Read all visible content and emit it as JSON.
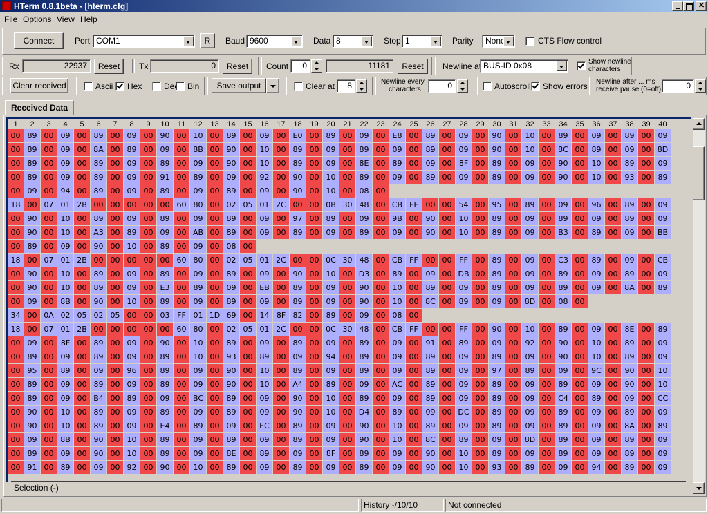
{
  "window": {
    "title": "HTerm 0.8.1beta - [hterm.cfg]"
  },
  "menu": [
    "File",
    "Options",
    "View",
    "Help"
  ],
  "toolbar1": {
    "connect": "Connect",
    "port_label": "Port",
    "port": "COM1",
    "r_button": "R",
    "baud_label": "Baud",
    "baud": "9600",
    "data_label": "Data",
    "data": "8",
    "stop_label": "Stop",
    "stop": "1",
    "parity_label": "Parity",
    "parity": "None",
    "cts": {
      "label": "CTS Flow control",
      "checked": false
    }
  },
  "toolbar2": {
    "rx_label": "Rx",
    "rx_value": 22937,
    "rx_reset": "Reset",
    "tx_label": "Tx",
    "tx_value": 0,
    "tx_reset": "Reset",
    "count_label": "Count",
    "count_value": 0,
    "count_total": 11181,
    "count_reset": "Reset",
    "newline_label": "Newline at",
    "newline_value": "BUS-ID 0x08",
    "show_newline": {
      "label": [
        "Show newline",
        "characters"
      ],
      "checked": true
    }
  },
  "toolbar3": {
    "clear_received": "Clear received",
    "ascii": {
      "label": "Ascii",
      "checked": false
    },
    "hex": {
      "label": "Hex",
      "checked": true
    },
    "dec": {
      "label": "Dec",
      "checked": false
    },
    "bin": {
      "label": "Bin",
      "checked": false
    },
    "save_output": "Save output",
    "clear_at": {
      "label": "Clear at",
      "checked": false
    },
    "clear_at_value": 8,
    "newline_every": [
      "Newline every",
      "... characters"
    ],
    "newline_every_value": 0,
    "autoscroll": {
      "label": "Autoscroll",
      "checked": false
    },
    "show_errors": {
      "label": "Show errors",
      "checked": true
    },
    "newline_after": [
      "Newline after ... ms",
      "receive pause (0=off)"
    ],
    "newline_after_value": 0
  },
  "tab": "Received Data",
  "grid": {
    "columns": [
      1,
      2,
      3,
      4,
      5,
      6,
      7,
      8,
      9,
      10,
      11,
      12,
      13,
      14,
      15,
      16,
      17,
      18,
      19,
      20,
      21,
      22,
      23,
      24,
      25,
      26,
      27,
      28,
      29,
      30,
      31,
      32,
      33,
      34,
      35,
      36,
      37,
      38,
      39,
      40
    ],
    "rows": [
      [
        "00",
        "89",
        "00",
        "09",
        "00",
        "89",
        "00",
        "09",
        "00",
        "90",
        "00",
        "10",
        "00",
        "89",
        "00",
        "09",
        "00",
        "E0",
        "00",
        "89",
        "00",
        "09",
        "00",
        "E8",
        "00",
        "89",
        "00",
        "09",
        "00",
        "90",
        "00",
        "10",
        "00",
        "89",
        "00",
        "09",
        "00",
        "89",
        "00",
        "09"
      ],
      [
        "00",
        "89",
        "00",
        "09",
        "00",
        "8A",
        "00",
        "89",
        "00",
        "09",
        "00",
        "8B",
        "00",
        "90",
        "00",
        "10",
        "00",
        "89",
        "00",
        "09",
        "00",
        "89",
        "00",
        "09",
        "00",
        "89",
        "00",
        "09",
        "00",
        "90",
        "00",
        "10",
        "00",
        "8C",
        "00",
        "89",
        "00",
        "09",
        "00",
        "8D"
      ],
      [
        "00",
        "89",
        "00",
        "09",
        "00",
        "89",
        "00",
        "09",
        "00",
        "89",
        "00",
        "09",
        "00",
        "90",
        "00",
        "10",
        "00",
        "89",
        "00",
        "09",
        "00",
        "8E",
        "00",
        "89",
        "00",
        "09",
        "00",
        "8F",
        "00",
        "89",
        "00",
        "09",
        "00",
        "90",
        "00",
        "10",
        "00",
        "89",
        "00",
        "09"
      ],
      [
        "00",
        "89",
        "00",
        "09",
        "00",
        "89",
        "00",
        "09",
        "00",
        "91",
        "00",
        "89",
        "00",
        "09",
        "00",
        "92",
        "00",
        "90",
        "00",
        "10",
        "00",
        "89",
        "00",
        "09",
        "00",
        "89",
        "00",
        "09",
        "00",
        "89",
        "00",
        "09",
        "00",
        "90",
        "00",
        "10",
        "00",
        "93",
        "00",
        "89"
      ],
      [
        "00",
        "09",
        "00",
        "94",
        "00",
        "89",
        "00",
        "09",
        "00",
        "89",
        "00",
        "09",
        "00",
        "89",
        "00",
        "09",
        "00",
        "90",
        "00",
        "10",
        "00",
        "08",
        "00"
      ],
      [
        "18",
        "00",
        "07",
        "01",
        "2B",
        "00",
        "00",
        "00",
        "00",
        "00",
        "60",
        "80",
        "00",
        "02",
        "05",
        "01",
        "2C",
        "00",
        "00",
        "0B",
        "30",
        "48",
        "00",
        "CB",
        "FF",
        "00",
        "00",
        "54",
        "00",
        "95",
        "00",
        "89",
        "00",
        "09",
        "00",
        "96",
        "00",
        "89",
        "00",
        "09"
      ],
      [
        "00",
        "90",
        "00",
        "10",
        "00",
        "89",
        "00",
        "09",
        "00",
        "89",
        "00",
        "09",
        "00",
        "89",
        "00",
        "09",
        "00",
        "97",
        "00",
        "89",
        "00",
        "09",
        "00",
        "9B",
        "00",
        "90",
        "00",
        "10",
        "00",
        "89",
        "00",
        "09",
        "00",
        "89",
        "00",
        "09",
        "00",
        "89",
        "00",
        "09"
      ],
      [
        "00",
        "90",
        "00",
        "10",
        "00",
        "A3",
        "00",
        "89",
        "00",
        "09",
        "00",
        "AB",
        "00",
        "89",
        "00",
        "09",
        "00",
        "89",
        "00",
        "09",
        "00",
        "89",
        "00",
        "09",
        "00",
        "90",
        "00",
        "10",
        "00",
        "89",
        "00",
        "09",
        "00",
        "B3",
        "00",
        "89",
        "00",
        "09",
        "00",
        "BB"
      ],
      [
        "00",
        "89",
        "00",
        "09",
        "00",
        "90",
        "00",
        "10",
        "00",
        "89",
        "00",
        "09",
        "00",
        "08",
        "00"
      ],
      [
        "18",
        "00",
        "07",
        "01",
        "2B",
        "00",
        "00",
        "00",
        "00",
        "00",
        "60",
        "80",
        "00",
        "02",
        "05",
        "01",
        "2C",
        "00",
        "00",
        "0C",
        "30",
        "48",
        "00",
        "CB",
        "FF",
        "00",
        "00",
        "FF",
        "00",
        "89",
        "00",
        "09",
        "00",
        "C3",
        "00",
        "89",
        "00",
        "09",
        "00",
        "CB"
      ],
      [
        "00",
        "90",
        "00",
        "10",
        "00",
        "89",
        "00",
        "09",
        "00",
        "89",
        "00",
        "09",
        "00",
        "89",
        "00",
        "09",
        "00",
        "90",
        "00",
        "10",
        "00",
        "D3",
        "00",
        "89",
        "00",
        "09",
        "00",
        "DB",
        "00",
        "89",
        "00",
        "09",
        "00",
        "89",
        "00",
        "09",
        "00",
        "89",
        "00",
        "09"
      ],
      [
        "00",
        "90",
        "00",
        "10",
        "00",
        "89",
        "00",
        "09",
        "00",
        "E3",
        "00",
        "89",
        "00",
        "09",
        "00",
        "EB",
        "00",
        "89",
        "00",
        "09",
        "00",
        "90",
        "00",
        "10",
        "00",
        "89",
        "00",
        "09",
        "00",
        "89",
        "00",
        "09",
        "00",
        "89",
        "00",
        "09",
        "00",
        "8A",
        "00",
        "89"
      ],
      [
        "00",
        "09",
        "00",
        "8B",
        "00",
        "90",
        "00",
        "10",
        "00",
        "89",
        "00",
        "09",
        "00",
        "89",
        "00",
        "09",
        "00",
        "89",
        "00",
        "09",
        "00",
        "90",
        "00",
        "10",
        "00",
        "8C",
        "00",
        "89",
        "00",
        "09",
        "00",
        "8D",
        "00",
        "08",
        "00"
      ],
      [
        "34",
        "00",
        "0A",
        "02",
        "05",
        "02",
        "05",
        "00",
        "00",
        "03",
        "FF",
        "01",
        "1D",
        "69",
        "00",
        "14",
        "8F",
        "82",
        "00",
        "89",
        "00",
        "09",
        "00",
        "08",
        "00"
      ],
      [
        "18",
        "00",
        "07",
        "01",
        "2B",
        "00",
        "00",
        "00",
        "00",
        "00",
        "60",
        "80",
        "00",
        "02",
        "05",
        "01",
        "2C",
        "00",
        "00",
        "0C",
        "30",
        "48",
        "00",
        "CB",
        "FF",
        "00",
        "00",
        "FF",
        "00",
        "90",
        "00",
        "10",
        "00",
        "89",
        "00",
        "09",
        "00",
        "8E",
        "00",
        "89"
      ],
      [
        "00",
        "09",
        "00",
        "8F",
        "00",
        "89",
        "00",
        "09",
        "00",
        "90",
        "00",
        "10",
        "00",
        "89",
        "00",
        "09",
        "00",
        "89",
        "00",
        "09",
        "00",
        "89",
        "00",
        "09",
        "00",
        "91",
        "00",
        "89",
        "00",
        "09",
        "00",
        "92",
        "00",
        "90",
        "00",
        "10",
        "00",
        "89",
        "00",
        "09"
      ],
      [
        "00",
        "89",
        "00",
        "09",
        "00",
        "89",
        "00",
        "09",
        "00",
        "89",
        "00",
        "10",
        "00",
        "93",
        "00",
        "89",
        "00",
        "09",
        "00",
        "94",
        "00",
        "89",
        "00",
        "09",
        "00",
        "89",
        "00",
        "09",
        "00",
        "89",
        "00",
        "09",
        "00",
        "90",
        "00",
        "10",
        "00",
        "89",
        "00",
        "09"
      ],
      [
        "00",
        "95",
        "00",
        "89",
        "00",
        "09",
        "00",
        "96",
        "00",
        "89",
        "00",
        "09",
        "00",
        "90",
        "00",
        "10",
        "00",
        "89",
        "00",
        "09",
        "00",
        "89",
        "00",
        "09",
        "00",
        "89",
        "00",
        "09",
        "00",
        "97",
        "00",
        "89",
        "00",
        "09",
        "00",
        "9C",
        "00",
        "90",
        "00",
        "10"
      ],
      [
        "00",
        "89",
        "00",
        "09",
        "00",
        "89",
        "00",
        "09",
        "00",
        "89",
        "00",
        "09",
        "00",
        "90",
        "00",
        "10",
        "00",
        "A4",
        "00",
        "89",
        "00",
        "09",
        "00",
        "AC",
        "00",
        "89",
        "00",
        "09",
        "00",
        "89",
        "00",
        "09",
        "00",
        "89",
        "00",
        "09",
        "00",
        "90",
        "00",
        "10"
      ],
      [
        "00",
        "89",
        "00",
        "09",
        "00",
        "B4",
        "00",
        "89",
        "00",
        "09",
        "00",
        "BC",
        "00",
        "89",
        "00",
        "09",
        "00",
        "90",
        "00",
        "10",
        "00",
        "89",
        "00",
        "09",
        "00",
        "89",
        "00",
        "09",
        "00",
        "89",
        "00",
        "09",
        "00",
        "C4",
        "00",
        "89",
        "00",
        "09",
        "00",
        "CC"
      ],
      [
        "00",
        "90",
        "00",
        "10",
        "00",
        "89",
        "00",
        "09",
        "00",
        "89",
        "00",
        "09",
        "00",
        "89",
        "00",
        "09",
        "00",
        "90",
        "00",
        "10",
        "00",
        "D4",
        "00",
        "89",
        "00",
        "09",
        "00",
        "DC",
        "00",
        "89",
        "00",
        "09",
        "00",
        "89",
        "00",
        "09",
        "00",
        "89",
        "00",
        "09"
      ],
      [
        "00",
        "90",
        "00",
        "10",
        "00",
        "89",
        "00",
        "09",
        "00",
        "E4",
        "00",
        "89",
        "00",
        "09",
        "00",
        "EC",
        "00",
        "89",
        "00",
        "09",
        "00",
        "90",
        "00",
        "10",
        "00",
        "89",
        "00",
        "09",
        "00",
        "89",
        "00",
        "09",
        "00",
        "89",
        "00",
        "09",
        "00",
        "8A",
        "00",
        "89"
      ],
      [
        "00",
        "09",
        "00",
        "8B",
        "00",
        "90",
        "00",
        "10",
        "00",
        "89",
        "00",
        "09",
        "00",
        "89",
        "00",
        "09",
        "00",
        "89",
        "00",
        "09",
        "00",
        "90",
        "00",
        "10",
        "00",
        "8C",
        "00",
        "89",
        "00",
        "09",
        "00",
        "8D",
        "00",
        "89",
        "00",
        "09",
        "00",
        "89",
        "00",
        "09"
      ],
      [
        "00",
        "89",
        "00",
        "09",
        "00",
        "90",
        "00",
        "10",
        "00",
        "89",
        "00",
        "09",
        "00",
        "8E",
        "00",
        "89",
        "00",
        "09",
        "00",
        "8F",
        "00",
        "89",
        "00",
        "09",
        "00",
        "90",
        "00",
        "10",
        "00",
        "89",
        "00",
        "09",
        "00",
        "89",
        "00",
        "09",
        "00",
        "89",
        "00",
        "09"
      ],
      [
        "00",
        "91",
        "00",
        "89",
        "00",
        "09",
        "00",
        "92",
        "00",
        "90",
        "00",
        "10",
        "00",
        "89",
        "00",
        "09",
        "00",
        "89",
        "00",
        "09",
        "00",
        "89",
        "00",
        "09",
        "00",
        "90",
        "00",
        "10",
        "00",
        "93",
        "00",
        "89",
        "00",
        "09",
        "00",
        "94",
        "00",
        "89",
        "00",
        "09"
      ]
    ]
  },
  "selection": "Selection (-)",
  "status": {
    "history": "History -/10/10",
    "connection": "Not connected"
  }
}
